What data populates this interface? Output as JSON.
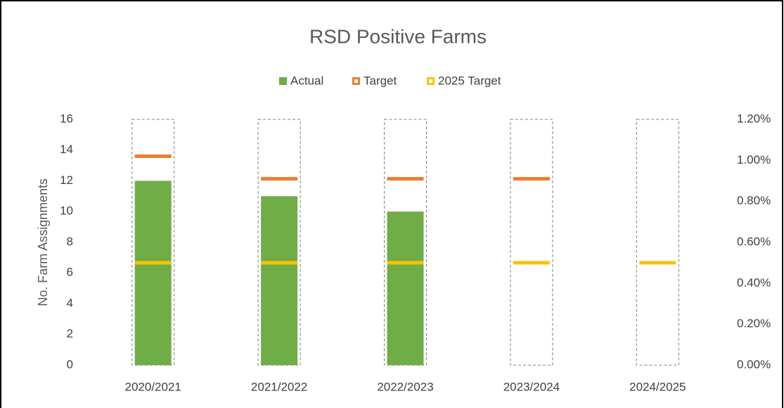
{
  "chart_data": {
    "type": "bar",
    "title": "RSD Positive Farms",
    "y_label": "No. Farm Assignments",
    "categories": [
      "2020/2021",
      "2021/2022",
      "2022/2023",
      "2023/2024",
      "2024/2025"
    ],
    "series": [
      {
        "name": "Actual",
        "color": "#70ad47",
        "kind": "bar",
        "values": [
          12,
          11,
          10,
          null,
          null
        ]
      },
      {
        "name": "Target",
        "color": "#ed7d31",
        "kind": "marker",
        "axis": "y2",
        "values": [
          1.02,
          0.91,
          0.91,
          0.91,
          null
        ]
      },
      {
        "name": "2025 Target",
        "color": "#ffc000",
        "kind": "marker",
        "axis": "y2",
        "values": [
          0.5,
          0.5,
          0.5,
          0.5,
          0.5
        ]
      }
    ],
    "ylim": [
      0,
      16
    ],
    "yticks": [
      0,
      2,
      4,
      6,
      8,
      10,
      12,
      14,
      16
    ],
    "y2lim": [
      0,
      1.2
    ],
    "y2ticks": [
      {
        "value": 0,
        "label": "0.00%"
      },
      {
        "value": 0.2,
        "label": "0.20%"
      },
      {
        "value": 0.4,
        "label": "0.40%"
      },
      {
        "value": 0.6,
        "label": "0.60%"
      },
      {
        "value": 0.8,
        "label": "0.80%"
      },
      {
        "value": 1.0,
        "label": "1.00%"
      },
      {
        "value": 1.2,
        "label": "1.20%"
      }
    ],
    "legend": "top"
  }
}
